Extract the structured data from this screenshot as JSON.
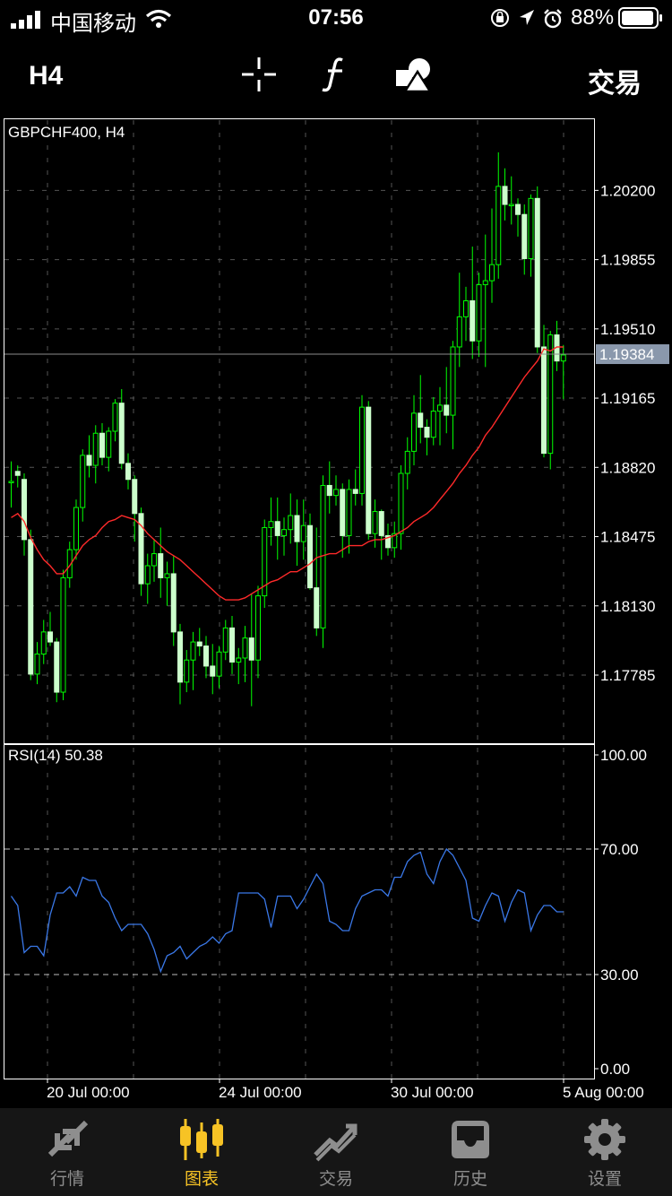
{
  "status_bar": {
    "carrier": "中国移动",
    "time": "07:56",
    "battery": "88%"
  },
  "toolbar": {
    "period": "H4",
    "trade_label": "交易",
    "icons": [
      "crosshair-icon",
      "function-icon",
      "objects-icon"
    ]
  },
  "tabs": [
    {
      "label": "行情",
      "icon": "quotes-icon",
      "active": false
    },
    {
      "label": "图表",
      "icon": "chart-icon",
      "active": true
    },
    {
      "label": "交易",
      "icon": "trade-icon",
      "active": false
    },
    {
      "label": "历史",
      "icon": "history-icon",
      "active": false
    },
    {
      "label": "设置",
      "icon": "settings-icon",
      "active": false
    }
  ],
  "colors": {
    "bull": "#ccffcc",
    "wick": "#00ff00",
    "ma": "#ff2a2a",
    "rsi": "#3a78e8",
    "accent": "#f7c325"
  },
  "chart_data": [
    {
      "type": "candlestick",
      "title": "GBPCHF400, H4",
      "ylim": [
        1.1745,
        1.2055
      ],
      "yticks": [
        "1.20200",
        "1.19855",
        "1.19510",
        "1.19165",
        "1.18820",
        "1.18475",
        "1.18130",
        "1.17785"
      ],
      "current_price": "1.19384",
      "xticks": [
        "20 Jul 00:00",
        "24 Jul 00:00",
        "30 Jul 00:00",
        "5 Aug 00:00"
      ],
      "ohlc": [
        [
          1.1875,
          1.1885,
          1.1862,
          1.1875
        ],
        [
          1.188,
          1.1883,
          1.1872,
          1.1878
        ],
        [
          1.1876,
          1.1879,
          1.1838,
          1.1846
        ],
        [
          1.1846,
          1.1851,
          1.1776,
          1.1779
        ],
        [
          1.1779,
          1.1795,
          1.1774,
          1.1789
        ],
        [
          1.1789,
          1.1806,
          1.1784,
          1.18
        ],
        [
          1.18,
          1.181,
          1.1793,
          1.1795
        ],
        [
          1.1795,
          1.1797,
          1.1765,
          1.177
        ],
        [
          1.177,
          1.1831,
          1.1766,
          1.1827
        ],
        [
          1.1827,
          1.1845,
          1.1822,
          1.1841
        ],
        [
          1.1841,
          1.1866,
          1.1836,
          1.1862
        ],
        [
          1.1862,
          1.1891,
          1.1855,
          1.1888
        ],
        [
          1.1888,
          1.1898,
          1.1877,
          1.1883
        ],
        [
          1.1883,
          1.1903,
          1.1874,
          1.1899
        ],
        [
          1.1899,
          1.1904,
          1.1883,
          1.1887
        ],
        [
          1.1887,
          1.1902,
          1.188,
          1.19
        ],
        [
          1.19,
          1.1916,
          1.1895,
          1.1914
        ],
        [
          1.1914,
          1.1921,
          1.1881,
          1.1884
        ],
        [
          1.1884,
          1.1889,
          1.1871,
          1.1876
        ],
        [
          1.1876,
          1.1878,
          1.1845,
          1.1859
        ],
        [
          1.1859,
          1.1862,
          1.1818,
          1.1824
        ],
        [
          1.1824,
          1.1839,
          1.1814,
          1.1833
        ],
        [
          1.1833,
          1.1846,
          1.1825,
          1.1839
        ],
        [
          1.1839,
          1.1852,
          1.1817,
          1.1827
        ],
        [
          1.1827,
          1.1835,
          1.1813,
          1.1829
        ],
        [
          1.1829,
          1.1838,
          1.1793,
          1.18
        ],
        [
          1.18,
          1.1804,
          1.1764,
          1.1775
        ],
        [
          1.1775,
          1.1791,
          1.177,
          1.1786
        ],
        [
          1.1786,
          1.18,
          1.1771,
          1.1795
        ],
        [
          1.1795,
          1.1802,
          1.1788,
          1.1793
        ],
        [
          1.1793,
          1.1798,
          1.1777,
          1.1783
        ],
        [
          1.1783,
          1.1794,
          1.1769,
          1.1778
        ],
        [
          1.1778,
          1.1793,
          1.1772,
          1.179
        ],
        [
          1.179,
          1.1806,
          1.1786,
          1.1802
        ],
        [
          1.1802,
          1.1808,
          1.1779,
          1.1785
        ],
        [
          1.1785,
          1.1792,
          1.1774,
          1.1787
        ],
        [
          1.1787,
          1.1803,
          1.1775,
          1.1797
        ],
        [
          1.1797,
          1.1819,
          1.1763,
          1.1786
        ],
        [
          1.1786,
          1.1823,
          1.1777,
          1.1818
        ],
        [
          1.1818,
          1.1856,
          1.1812,
          1.1852
        ],
        [
          1.1852,
          1.1867,
          1.1843,
          1.1855
        ],
        [
          1.1855,
          1.1867,
          1.1836,
          1.1848
        ],
        [
          1.1848,
          1.1857,
          1.1838,
          1.1851
        ],
        [
          1.1851,
          1.1869,
          1.1844,
          1.1858
        ],
        [
          1.1858,
          1.1866,
          1.1833,
          1.1845
        ],
        [
          1.1845,
          1.1866,
          1.1836,
          1.1853
        ],
        [
          1.1853,
          1.1859,
          1.1821,
          1.1822
        ],
        [
          1.1822,
          1.1852,
          1.1798,
          1.1802
        ],
        [
          1.1802,
          1.1878,
          1.1792,
          1.1873
        ],
        [
          1.1873,
          1.1885,
          1.1859,
          1.1868
        ],
        [
          1.1868,
          1.1878,
          1.1863,
          1.1871
        ],
        [
          1.1871,
          1.1874,
          1.1837,
          1.1848
        ],
        [
          1.1848,
          1.1876,
          1.1839,
          1.1871
        ],
        [
          1.1871,
          1.1881,
          1.1863,
          1.1869
        ],
        [
          1.1869,
          1.1918,
          1.1863,
          1.1912
        ],
        [
          1.1912,
          1.1915,
          1.1846,
          1.1849
        ],
        [
          1.1849,
          1.1866,
          1.1842,
          1.186
        ],
        [
          1.186,
          1.1861,
          1.1836,
          1.1848
        ],
        [
          1.1848,
          1.1854,
          1.1838,
          1.1842
        ],
        [
          1.1842,
          1.1855,
          1.1837,
          1.1849
        ],
        [
          1.1849,
          1.1883,
          1.1841,
          1.1879
        ],
        [
          1.1879,
          1.1897,
          1.1871,
          1.189
        ],
        [
          1.189,
          1.1918,
          1.1883,
          1.1909
        ],
        [
          1.1909,
          1.1928,
          1.1894,
          1.1902
        ],
        [
          1.1902,
          1.1906,
          1.1888,
          1.1897
        ],
        [
          1.1897,
          1.1917,
          1.1893,
          1.191
        ],
        [
          1.191,
          1.1922,
          1.1893,
          1.1913
        ],
        [
          1.1913,
          1.1932,
          1.1899,
          1.1908
        ],
        [
          1.1908,
          1.1945,
          1.1891,
          1.1942
        ],
        [
          1.1942,
          1.1979,
          1.1932,
          1.1957
        ],
        [
          1.1957,
          1.1972,
          1.1945,
          1.1965
        ],
        [
          1.1965,
          1.1992,
          1.1936,
          1.1945
        ],
        [
          1.1945,
          1.1979,
          1.1937,
          1.1973
        ],
        [
          1.1973,
          1.1998,
          1.1932,
          1.1975
        ],
        [
          1.1975,
          1.2011,
          1.1964,
          1.1983
        ],
        [
          1.1983,
          1.2039,
          1.1976,
          1.2022
        ],
        [
          1.2022,
          1.2031,
          1.2005,
          1.2013
        ],
        [
          1.2013,
          1.2027,
          1.2003,
          1.2013
        ],
        [
          1.2013,
          1.2016,
          1.1997,
          1.2008
        ],
        [
          1.2008,
          1.2013,
          1.1978,
          1.1986
        ],
        [
          1.1986,
          1.2018,
          1.1977,
          1.2016
        ],
        [
          1.2016,
          1.2022,
          1.1939,
          1.1942
        ],
        [
          1.1942,
          1.1953,
          1.1887,
          1.1889
        ],
        [
          1.1889,
          1.195,
          1.1881,
          1.1948
        ],
        [
          1.1948,
          1.1955,
          1.193,
          1.1935
        ],
        [
          1.1935,
          1.1943,
          1.1916,
          1.1938
        ]
      ],
      "ma_line": [
        1.1857,
        1.1859,
        1.1855,
        1.1847,
        1.1841,
        1.1836,
        1.1833,
        1.1829,
        1.1829,
        1.1833,
        1.1838,
        1.1843,
        1.1846,
        1.1848,
        1.1852,
        1.1855,
        1.1856,
        1.1858,
        1.1857,
        1.1856,
        1.1853,
        1.1849,
        1.1846,
        1.1843,
        1.184,
        1.1838,
        1.1836,
        1.1833,
        1.183,
        1.1827,
        1.1824,
        1.1821,
        1.1818,
        1.1816,
        1.1816,
        1.1816,
        1.1817,
        1.1819,
        1.1821,
        1.1823,
        1.1825,
        1.1826,
        1.1828,
        1.183,
        1.183,
        1.1832,
        1.1834,
        1.1837,
        1.1838,
        1.1839,
        1.1839,
        1.1841,
        1.1843,
        1.1843,
        1.1843,
        1.1845,
        1.1846,
        1.1846,
        1.1847,
        1.1848,
        1.185,
        1.1852,
        1.1855,
        1.1857,
        1.1859,
        1.1862,
        1.1866,
        1.187,
        1.1874,
        1.1879,
        1.1883,
        1.1888,
        1.1892,
        1.1898,
        1.1902,
        1.1907,
        1.1912,
        1.1917,
        1.1922,
        1.1927,
        1.1931,
        1.1935,
        1.1941,
        1.194,
        1.1942,
        1.1942
      ]
    },
    {
      "type": "line",
      "title": "RSI(14) 50.38",
      "ylim": [
        0,
        100
      ],
      "yticks": [
        "100.00",
        "70.00",
        "30.00",
        "0.00"
      ],
      "levels": [
        70,
        30
      ],
      "values": [
        55,
        52,
        37,
        39,
        39,
        36,
        49,
        56,
        56,
        58,
        55,
        61,
        60,
        60,
        55,
        53,
        48,
        44,
        46,
        46,
        46,
        43,
        38,
        31,
        36,
        37,
        39,
        35,
        37,
        39,
        40,
        42,
        40,
        43,
        44,
        56,
        56,
        56,
        56,
        54,
        45,
        55,
        55,
        55,
        51,
        54,
        58,
        62,
        59,
        47,
        46,
        44,
        44,
        51,
        55,
        56,
        57,
        57,
        55,
        61,
        61,
        66,
        68,
        69,
        62,
        59,
        66,
        70,
        68,
        64,
        60,
        48,
        47,
        52,
        56,
        55,
        47,
        53,
        57,
        56,
        44,
        49,
        52,
        52,
        50,
        50
      ]
    }
  ]
}
